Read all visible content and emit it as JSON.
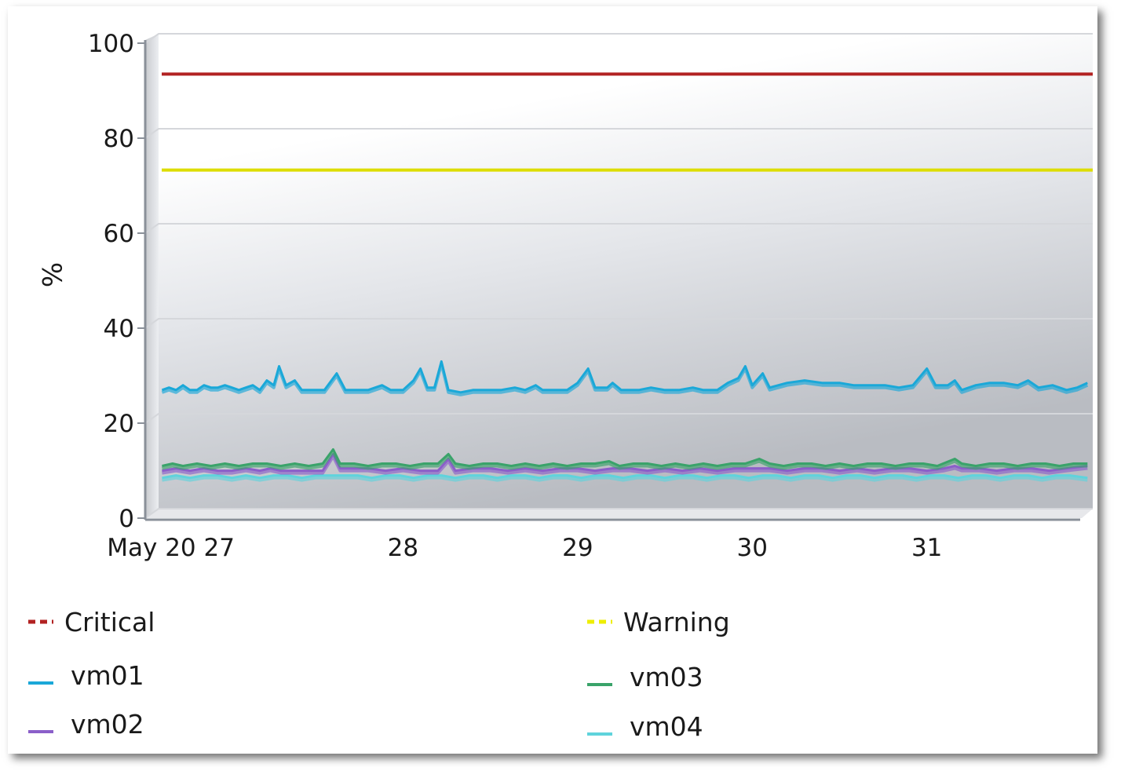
{
  "chart_data": {
    "type": "line",
    "title": "",
    "ylabel": "%",
    "xlabel": "",
    "ylim": [
      0,
      100
    ],
    "yticks": [
      0,
      20,
      40,
      60,
      80,
      100
    ],
    "grid": true,
    "legend_position": "bottom",
    "x_tick_labels": [
      "May 20 27",
      "28",
      "29",
      "30",
      "31"
    ],
    "x_tick_positions": [
      27,
      28,
      29,
      30,
      31
    ],
    "xlim": [
      26.6,
      31.95
    ],
    "thresholds": [
      {
        "name": "Critical",
        "value": 91.5,
        "color": "#b22222"
      },
      {
        "name": "Warning",
        "value": 71.3,
        "color": "#dddd00"
      }
    ],
    "series": [
      {
        "name": "vm01",
        "color": "#1aa8d8",
        "points": [
          [
            26.62,
            25
          ],
          [
            26.66,
            25.5
          ],
          [
            26.7,
            25
          ],
          [
            26.74,
            26
          ],
          [
            26.78,
            25
          ],
          [
            26.82,
            25
          ],
          [
            26.86,
            26
          ],
          [
            26.9,
            25.5
          ],
          [
            26.94,
            25.5
          ],
          [
            26.98,
            26
          ],
          [
            27.02,
            25.5
          ],
          [
            27.06,
            25
          ],
          [
            27.1,
            25.5
          ],
          [
            27.14,
            26
          ],
          [
            27.18,
            25
          ],
          [
            27.22,
            27
          ],
          [
            27.26,
            26
          ],
          [
            27.29,
            30
          ],
          [
            27.33,
            26
          ],
          [
            27.38,
            27
          ],
          [
            27.42,
            25
          ],
          [
            27.48,
            25
          ],
          [
            27.55,
            25
          ],
          [
            27.62,
            28.5
          ],
          [
            27.67,
            25
          ],
          [
            27.72,
            25
          ],
          [
            27.8,
            25
          ],
          [
            27.88,
            26
          ],
          [
            27.93,
            25
          ],
          [
            28.0,
            25
          ],
          [
            28.06,
            27
          ],
          [
            28.1,
            29.5
          ],
          [
            28.14,
            25.5
          ],
          [
            28.18,
            25.5
          ],
          [
            28.22,
            31
          ],
          [
            28.26,
            25
          ],
          [
            28.33,
            24.5
          ],
          [
            28.4,
            25
          ],
          [
            28.48,
            25
          ],
          [
            28.56,
            25
          ],
          [
            28.64,
            25.5
          ],
          [
            28.7,
            25
          ],
          [
            28.76,
            26
          ],
          [
            28.8,
            25
          ],
          [
            28.88,
            25
          ],
          [
            28.94,
            25
          ],
          [
            29.0,
            26.5
          ],
          [
            29.06,
            29.5
          ],
          [
            29.1,
            25.5
          ],
          [
            29.17,
            25.5
          ],
          [
            29.2,
            26.5
          ],
          [
            29.25,
            25
          ],
          [
            29.35,
            25
          ],
          [
            29.42,
            25.5
          ],
          [
            29.5,
            25
          ],
          [
            29.58,
            25
          ],
          [
            29.66,
            25.5
          ],
          [
            29.72,
            25
          ],
          [
            29.8,
            25
          ],
          [
            29.86,
            26.5
          ],
          [
            29.92,
            27.5
          ],
          [
            29.96,
            30
          ],
          [
            30.0,
            26
          ],
          [
            30.06,
            28.5
          ],
          [
            30.1,
            25.5
          ],
          [
            30.2,
            26.5
          ],
          [
            30.3,
            27
          ],
          [
            30.4,
            26.5
          ],
          [
            30.5,
            26.5
          ],
          [
            30.58,
            26
          ],
          [
            30.66,
            26
          ],
          [
            30.76,
            26
          ],
          [
            30.84,
            25.5
          ],
          [
            30.92,
            26
          ],
          [
            31.0,
            29.5
          ],
          [
            31.05,
            26
          ],
          [
            31.12,
            26
          ],
          [
            31.16,
            27
          ],
          [
            31.2,
            25
          ],
          [
            31.28,
            26
          ],
          [
            31.36,
            26.5
          ],
          [
            31.44,
            26.5
          ],
          [
            31.52,
            26
          ],
          [
            31.58,
            27
          ],
          [
            31.64,
            25.5
          ],
          [
            31.72,
            26
          ],
          [
            31.8,
            25
          ],
          [
            31.86,
            25.5
          ],
          [
            31.92,
            26.5
          ]
        ]
      },
      {
        "name": "vm02",
        "color": "#8b5fc9",
        "points": [
          [
            26.62,
            8
          ],
          [
            26.7,
            8.5
          ],
          [
            26.78,
            8
          ],
          [
            26.86,
            8.5
          ],
          [
            26.94,
            8
          ],
          [
            27.02,
            8
          ],
          [
            27.1,
            8.5
          ],
          [
            27.18,
            8
          ],
          [
            27.24,
            8.5
          ],
          [
            27.3,
            8
          ],
          [
            27.38,
            8
          ],
          [
            27.46,
            8
          ],
          [
            27.54,
            8
          ],
          [
            27.6,
            11.5
          ],
          [
            27.64,
            8.5
          ],
          [
            27.7,
            8.5
          ],
          [
            27.8,
            8.5
          ],
          [
            27.9,
            8
          ],
          [
            28.0,
            8.5
          ],
          [
            28.1,
            8
          ],
          [
            28.2,
            8
          ],
          [
            28.26,
            10.5
          ],
          [
            28.3,
            8
          ],
          [
            28.4,
            8.5
          ],
          [
            28.5,
            8.5
          ],
          [
            28.6,
            8
          ],
          [
            28.7,
            8.5
          ],
          [
            28.8,
            8
          ],
          [
            28.9,
            8.5
          ],
          [
            29.0,
            8.5
          ],
          [
            29.1,
            8
          ],
          [
            29.2,
            8.5
          ],
          [
            29.3,
            8.5
          ],
          [
            29.4,
            8
          ],
          [
            29.5,
            8.5
          ],
          [
            29.6,
            8
          ],
          [
            29.7,
            8.5
          ],
          [
            29.8,
            8
          ],
          [
            29.9,
            8.5
          ],
          [
            30.0,
            8.5
          ],
          [
            30.1,
            8.5
          ],
          [
            30.2,
            8
          ],
          [
            30.3,
            8.5
          ],
          [
            30.4,
            8.5
          ],
          [
            30.5,
            8
          ],
          [
            30.6,
            8.5
          ],
          [
            30.7,
            8
          ],
          [
            30.8,
            8.5
          ],
          [
            30.9,
            8.5
          ],
          [
            31.0,
            8
          ],
          [
            31.1,
            8.5
          ],
          [
            31.16,
            9
          ],
          [
            31.2,
            8.5
          ],
          [
            31.3,
            8.5
          ],
          [
            31.4,
            8
          ],
          [
            31.5,
            8.5
          ],
          [
            31.6,
            8.5
          ],
          [
            31.7,
            8
          ],
          [
            31.8,
            8.5
          ],
          [
            31.92,
            9
          ]
        ]
      },
      {
        "name": "vm03",
        "color": "#3aa36a",
        "points": [
          [
            26.62,
            9
          ],
          [
            26.68,
            9.5
          ],
          [
            26.74,
            9
          ],
          [
            26.82,
            9.5
          ],
          [
            26.9,
            9
          ],
          [
            26.98,
            9.5
          ],
          [
            27.06,
            9
          ],
          [
            27.14,
            9.5
          ],
          [
            27.22,
            9.5
          ],
          [
            27.3,
            9
          ],
          [
            27.38,
            9.5
          ],
          [
            27.46,
            9
          ],
          [
            27.54,
            9.5
          ],
          [
            27.6,
            12.5
          ],
          [
            27.64,
            9.5
          ],
          [
            27.72,
            9.5
          ],
          [
            27.8,
            9
          ],
          [
            27.88,
            9.5
          ],
          [
            27.96,
            9.5
          ],
          [
            28.04,
            9
          ],
          [
            28.12,
            9.5
          ],
          [
            28.2,
            9.5
          ],
          [
            28.26,
            11.5
          ],
          [
            28.3,
            9.5
          ],
          [
            28.38,
            9
          ],
          [
            28.46,
            9.5
          ],
          [
            28.54,
            9.5
          ],
          [
            28.62,
            9
          ],
          [
            28.7,
            9.5
          ],
          [
            28.78,
            9
          ],
          [
            28.86,
            9.5
          ],
          [
            28.94,
            9
          ],
          [
            29.02,
            9.5
          ],
          [
            29.1,
            9.5
          ],
          [
            29.18,
            10
          ],
          [
            29.24,
            9
          ],
          [
            29.32,
            9.5
          ],
          [
            29.4,
            9.5
          ],
          [
            29.48,
            9
          ],
          [
            29.56,
            9.5
          ],
          [
            29.64,
            9
          ],
          [
            29.72,
            9.5
          ],
          [
            29.8,
            9
          ],
          [
            29.88,
            9.5
          ],
          [
            29.96,
            9.5
          ],
          [
            30.04,
            10.5
          ],
          [
            30.1,
            9.5
          ],
          [
            30.18,
            9
          ],
          [
            30.26,
            9.5
          ],
          [
            30.34,
            9.5
          ],
          [
            30.42,
            9
          ],
          [
            30.5,
            9.5
          ],
          [
            30.58,
            9
          ],
          [
            30.66,
            9.5
          ],
          [
            30.74,
            9.5
          ],
          [
            30.82,
            9
          ],
          [
            30.9,
            9.5
          ],
          [
            30.98,
            9.5
          ],
          [
            31.06,
            9
          ],
          [
            31.16,
            10.5
          ],
          [
            31.2,
            9.5
          ],
          [
            31.28,
            9
          ],
          [
            31.36,
            9.5
          ],
          [
            31.44,
            9.5
          ],
          [
            31.52,
            9
          ],
          [
            31.6,
            9.5
          ],
          [
            31.68,
            9.5
          ],
          [
            31.76,
            9
          ],
          [
            31.84,
            9.5
          ],
          [
            31.92,
            9.5
          ]
        ]
      },
      {
        "name": "vm04",
        "color": "#5fd3dc",
        "points": [
          [
            26.62,
            6.5
          ],
          [
            26.7,
            7
          ],
          [
            26.78,
            6.5
          ],
          [
            26.86,
            7
          ],
          [
            26.94,
            7
          ],
          [
            27.02,
            6.5
          ],
          [
            27.1,
            7
          ],
          [
            27.18,
            6.5
          ],
          [
            27.26,
            7
          ],
          [
            27.34,
            7
          ],
          [
            27.42,
            6.5
          ],
          [
            27.5,
            7
          ],
          [
            27.58,
            7
          ],
          [
            27.66,
            7
          ],
          [
            27.74,
            7
          ],
          [
            27.82,
            6.5
          ],
          [
            27.9,
            7
          ],
          [
            27.98,
            7
          ],
          [
            28.06,
            6.5
          ],
          [
            28.14,
            7
          ],
          [
            28.22,
            7
          ],
          [
            28.3,
            6.5
          ],
          [
            28.38,
            7
          ],
          [
            28.46,
            7
          ],
          [
            28.54,
            6.5
          ],
          [
            28.62,
            7
          ],
          [
            28.7,
            7
          ],
          [
            28.78,
            6.5
          ],
          [
            28.86,
            7
          ],
          [
            28.94,
            7
          ],
          [
            29.02,
            6.5
          ],
          [
            29.1,
            7
          ],
          [
            29.18,
            7
          ],
          [
            29.26,
            6.5
          ],
          [
            29.34,
            7
          ],
          [
            29.42,
            7
          ],
          [
            29.5,
            6.5
          ],
          [
            29.58,
            7
          ],
          [
            29.66,
            7
          ],
          [
            29.74,
            6.5
          ],
          [
            29.82,
            7
          ],
          [
            29.9,
            7
          ],
          [
            29.98,
            6.5
          ],
          [
            30.06,
            7
          ],
          [
            30.14,
            7
          ],
          [
            30.22,
            6.5
          ],
          [
            30.3,
            7
          ],
          [
            30.38,
            7
          ],
          [
            30.46,
            6.5
          ],
          [
            30.54,
            7
          ],
          [
            30.62,
            7
          ],
          [
            30.7,
            6.5
          ],
          [
            30.78,
            7
          ],
          [
            30.86,
            7
          ],
          [
            30.94,
            6.5
          ],
          [
            31.02,
            7
          ],
          [
            31.1,
            7
          ],
          [
            31.18,
            6.5
          ],
          [
            31.26,
            7
          ],
          [
            31.34,
            7
          ],
          [
            31.42,
            6.5
          ],
          [
            31.5,
            7
          ],
          [
            31.58,
            7
          ],
          [
            31.66,
            6.5
          ],
          [
            31.74,
            7
          ],
          [
            31.82,
            7
          ],
          [
            31.92,
            6.5
          ]
        ]
      }
    ]
  },
  "legend": [
    {
      "label": "Critical",
      "color": "#b22222",
      "style": "dashed"
    },
    {
      "label": "Warning",
      "color": "#eeee00",
      "style": "dashed"
    },
    {
      "label": "vm01",
      "color": "#1aa8d8",
      "style": "solid"
    },
    {
      "label": "vm03",
      "color": "#3aa36a",
      "style": "solid"
    },
    {
      "label": "vm02",
      "color": "#8b5fc9",
      "style": "solid"
    },
    {
      "label": "vm04",
      "color": "#5fd3dc",
      "style": "solid"
    }
  ]
}
